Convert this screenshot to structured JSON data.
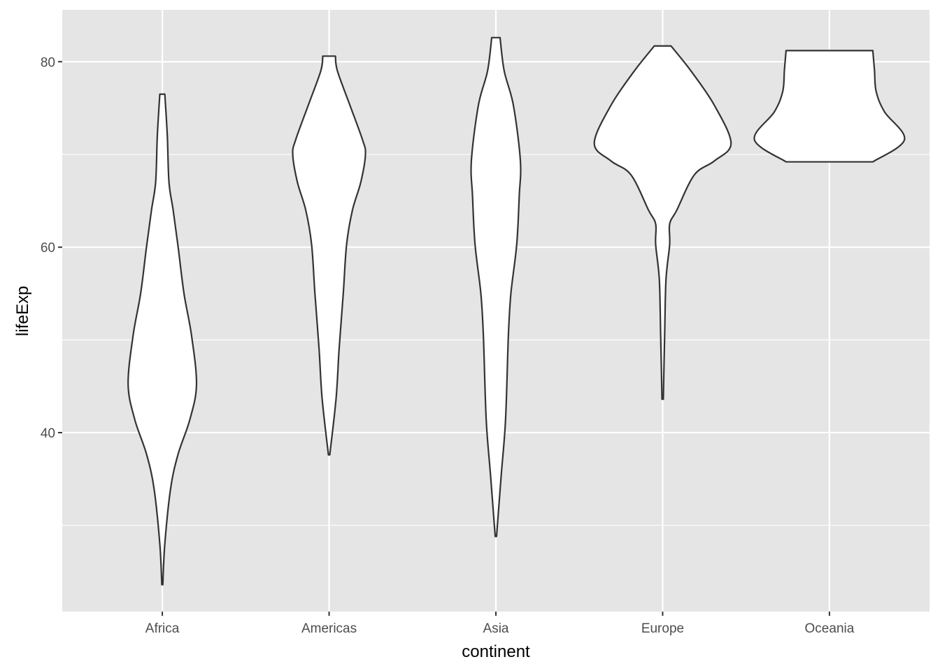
{
  "chart_data": {
    "type": "violin",
    "xlabel": "continent",
    "ylabel": "lifeExp",
    "categories": [
      "Africa",
      "Americas",
      "Asia",
      "Europe",
      "Oceania"
    ],
    "ylim": [
      20.7,
      85.6
    ],
    "yticks": [
      40,
      60,
      80
    ],
    "ytick_labels": [
      "40",
      "60",
      "80"
    ],
    "grid": true,
    "colors": {
      "panel": "#e5e5e5",
      "grid": "#ffffff",
      "fill": "#ffffff",
      "outline": "#333333"
    },
    "series": [
      {
        "category": "Africa",
        "profile": [
          [
            76.5,
            0.015
          ],
          [
            72,
            0.03
          ],
          [
            67,
            0.04
          ],
          [
            64,
            0.065
          ],
          [
            60,
            0.095
          ],
          [
            55,
            0.13
          ],
          [
            50.5,
            0.175
          ],
          [
            45.2,
            0.205
          ],
          [
            41.4,
            0.165
          ],
          [
            37.7,
            0.095
          ],
          [
            34,
            0.05
          ],
          [
            28,
            0.015
          ],
          [
            23.6,
            0.003
          ]
        ]
      },
      {
        "category": "Americas",
        "profile": [
          [
            80.6,
            0.038
          ],
          [
            79,
            0.05
          ],
          [
            75.3,
            0.125
          ],
          [
            71.6,
            0.2
          ],
          [
            70,
            0.218
          ],
          [
            67,
            0.19
          ],
          [
            64,
            0.14
          ],
          [
            60.3,
            0.105
          ],
          [
            55,
            0.085
          ],
          [
            49,
            0.06
          ],
          [
            43.7,
            0.042
          ],
          [
            37.6,
            0.004
          ]
        ]
      },
      {
        "category": "Asia",
        "profile": [
          [
            82.6,
            0.025
          ],
          [
            79,
            0.05
          ],
          [
            75.3,
            0.105
          ],
          [
            69.3,
            0.147
          ],
          [
            65.5,
            0.14
          ],
          [
            60.3,
            0.125
          ],
          [
            55,
            0.09
          ],
          [
            50.5,
            0.075
          ],
          [
            41.4,
            0.058
          ],
          [
            35.4,
            0.032
          ],
          [
            28.8,
            0.004
          ]
        ]
      },
      {
        "category": "Europe",
        "profile": [
          [
            81.7,
            0.05
          ],
          [
            79,
            0.17
          ],
          [
            75.3,
            0.31
          ],
          [
            71.2,
            0.41
          ],
          [
            69.3,
            0.31
          ],
          [
            67.8,
            0.19
          ],
          [
            64,
            0.085
          ],
          [
            62.5,
            0.042
          ],
          [
            60.3,
            0.042
          ],
          [
            56.5,
            0.02
          ],
          [
            50.5,
            0.012
          ],
          [
            43.6,
            0.004
          ]
        ]
      },
      {
        "category": "Oceania",
        "profile": [
          [
            81.2,
            0.26
          ],
          [
            79.1,
            0.27
          ],
          [
            76.8,
            0.28
          ],
          [
            74.6,
            0.33
          ],
          [
            71.6,
            0.45
          ],
          [
            69.2,
            0.26
          ]
        ]
      }
    ]
  }
}
